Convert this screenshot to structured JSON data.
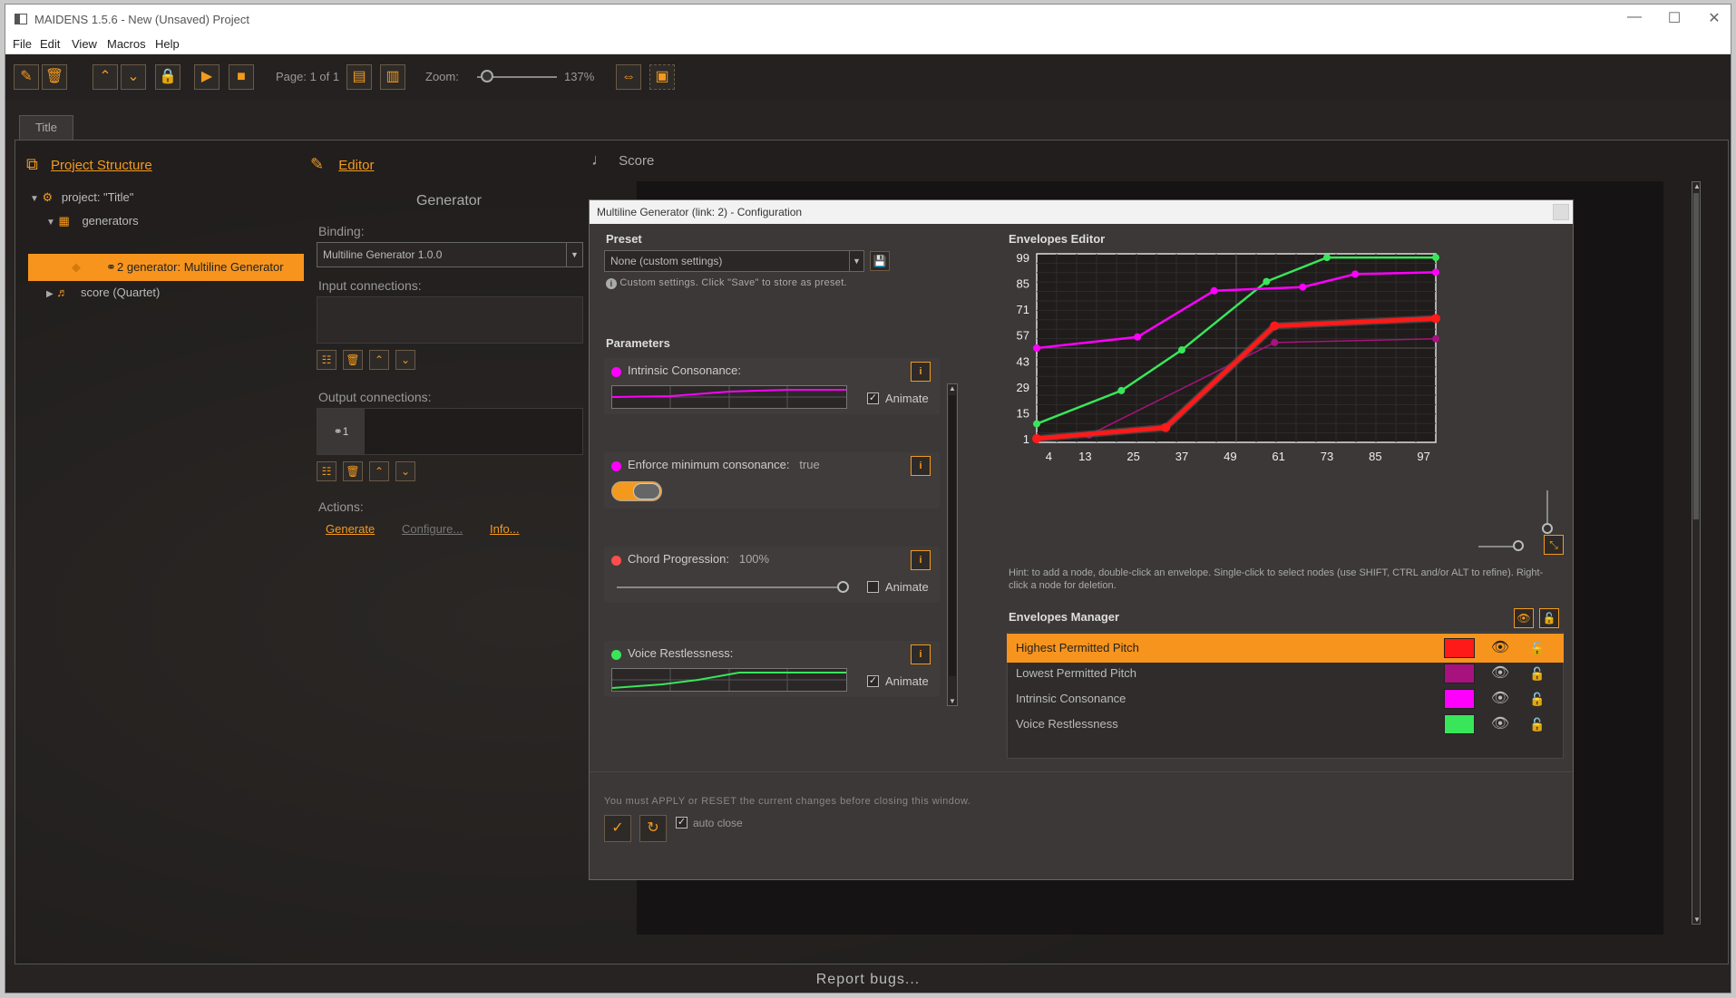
{
  "window": {
    "title": "MAIDENS 1.5.6 - New (Unsaved) Project",
    "controls": [
      "—",
      "☐",
      "✕"
    ]
  },
  "menu": [
    "File",
    "Edit",
    "View",
    "Macros",
    "Help"
  ],
  "toolbar": {
    "page_label": "Page: 1 of 1",
    "zoom_label": "Zoom:",
    "zoom_value": "137%",
    "zoom_fraction": 0.12
  },
  "tabs": [
    "Title"
  ],
  "project_structure": {
    "heading": "Project Structure",
    "tree": [
      {
        "label": "project: \"Title\"",
        "level": 0
      },
      {
        "label": "generators",
        "level": 1
      },
      {
        "label": "2 generator: Multiline Generator",
        "level": 2,
        "selected": true
      },
      {
        "label": "score (Quartet)",
        "level": 1
      }
    ]
  },
  "editor": {
    "heading": "Editor",
    "section_title": "Generator",
    "binding_label": "Binding:",
    "binding_value": "Multiline Generator 1.0.0",
    "input_connections_label": "Input connections:",
    "output_connections_label": "Output connections:",
    "output_item": "1",
    "actions_label": "Actions:",
    "actions": [
      "Generate",
      "Configure...",
      "Info..."
    ]
  },
  "score": {
    "heading": "Score"
  },
  "dialog": {
    "title": "Multiline Generator (link: 2) - Configuration",
    "preset_label": "Preset",
    "preset_value": "None (custom settings)",
    "preset_note": "Custom settings. Click \"Save\" to store as preset.",
    "parameters_label": "Parameters",
    "parameters": [
      {
        "name": "Intrinsic Consonance:",
        "value": "",
        "color": "#ff00ff",
        "animate_label": "Animate",
        "animate": true
      },
      {
        "name": "Enforce minimum consonance:",
        "value": "true",
        "color": "#ff00ff",
        "toggle": true
      },
      {
        "name": "Chord Progression:",
        "value": "100%",
        "color": "#ff4d4d",
        "animate_label": "Animate",
        "animate": false,
        "slider_fraction": 1.0
      },
      {
        "name": "Voice Restlessness:",
        "value": "",
        "color": "#39e65a",
        "animate_label": "Animate",
        "animate": true
      }
    ],
    "envelopes_editor_label": "Envelopes Editor",
    "hint": "Hint: to add a node, double-click an envelope. Single-click to select nodes (use SHIFT, CTRL and/or ALT to refine). Right-click a node for deletion.",
    "envelopes_manager_label": "Envelopes Manager",
    "envelopes": [
      {
        "name": "Highest Permitted Pitch",
        "color": "#ff1a1a",
        "selected": true
      },
      {
        "name": "Lowest Permitted Pitch",
        "color": "#a8127e",
        "selected": false
      },
      {
        "name": "Intrinsic Consonance",
        "color": "#ff00ff",
        "selected": false
      },
      {
        "name": "Voice Restlessness",
        "color": "#39e65a",
        "selected": false
      }
    ],
    "apply_note": "You must APPLY or RESET the current changes before closing this window.",
    "auto_close_label": "auto close",
    "auto_close": true
  },
  "footer": {
    "text": "Report bugs..."
  },
  "chart_data": {
    "type": "line",
    "x_ticks": [
      4,
      13,
      25,
      37,
      49,
      61,
      73,
      85,
      97
    ],
    "y_ticks": [
      99,
      85,
      71,
      57,
      43,
      29,
      15,
      1
    ],
    "xlim": [
      1,
      100
    ],
    "ylim": [
      -1,
      101
    ],
    "grid": true,
    "series": [
      {
        "name": "Voice Restlessness",
        "color": "#39e65a",
        "x": [
          1,
          22,
          37,
          58,
          73,
          100
        ],
        "y": [
          9,
          27,
          49,
          86,
          99,
          99
        ]
      },
      {
        "name": "Intrinsic Consonance",
        "color": "#ff00ff",
        "x": [
          1,
          26,
          45,
          67,
          80,
          100
        ],
        "y": [
          50,
          56,
          81,
          83,
          90,
          91
        ]
      },
      {
        "name": "Lowest Permitted Pitch",
        "color": "#a8127e",
        "x": [
          1,
          14,
          60,
          100
        ],
        "y": [
          1,
          3,
          53,
          55
        ]
      },
      {
        "name": "Highest Permitted Pitch",
        "color": "#ff1a1a",
        "x": [
          1,
          33,
          60,
          100
        ],
        "y": [
          1,
          7,
          62,
          66
        ]
      }
    ]
  }
}
